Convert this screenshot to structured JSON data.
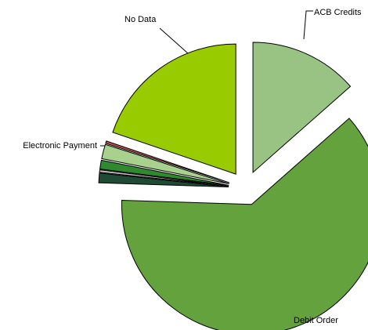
{
  "chart_data": {
    "type": "pie",
    "title": "",
    "legend": "none",
    "slices": [
      {
        "label": "ACB Credits",
        "value": 13.5,
        "color": "#99c382",
        "exploded": true,
        "show_label": true
      },
      {
        "label": "Debit Order",
        "value": 62.0,
        "color": "#63a23c",
        "exploded": true,
        "show_label": true
      },
      {
        "label": "Electronic Payment",
        "value": 1.2,
        "color": "#1f4a33",
        "exploded": true,
        "show_label": true
      },
      {
        "label": "",
        "value": 0.3,
        "color": "#bfbfbf",
        "exploded": true,
        "show_label": false
      },
      {
        "label": "",
        "value": 1.1,
        "color": "#2f8a2f",
        "exploded": true,
        "show_label": false
      },
      {
        "label": "",
        "value": 1.8,
        "color": "#a9d18e",
        "exploded": true,
        "show_label": false
      },
      {
        "label": "",
        "value": 0.3,
        "color": "#c0504d",
        "exploded": true,
        "show_label": false
      },
      {
        "label": "No Data",
        "value": 19.8,
        "color": "#99cc00",
        "exploded": true,
        "show_label": true
      }
    ]
  }
}
